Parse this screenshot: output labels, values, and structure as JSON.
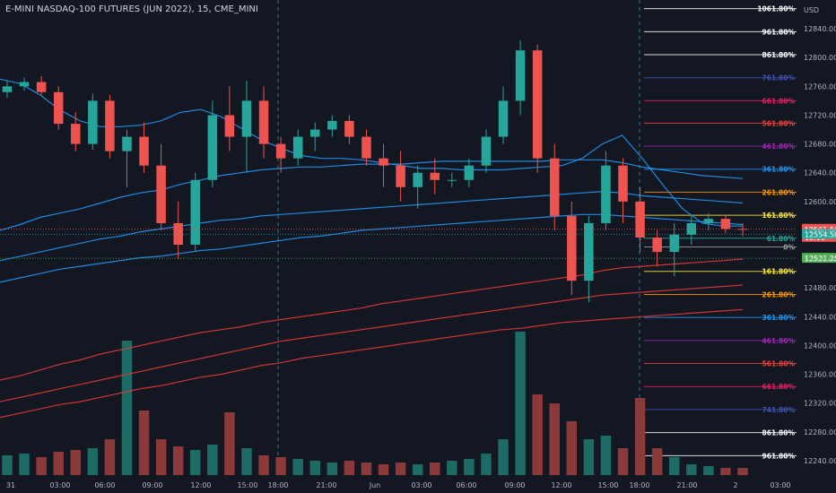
{
  "header": {
    "symbol": "E-MINI NASDAQ-100 FUTURES (JUN 2022), 15, CME_MINI"
  },
  "colors": {
    "background": "#131722",
    "up": "#26a69a",
    "down": "#ef5350",
    "up_volume": "#1e6b65",
    "down_volume": "#8c3a39",
    "grid_text": "#b2b5be",
    "ma_blue": "#2196f3",
    "ma_red": "#e53935"
  },
  "chart_data": {
    "type": "candlestick",
    "title": "E-MINI NASDAQ-100 FUTURES (JUN 2022), 15, CME_MINI",
    "currency_label": "USD",
    "ylim": [
      12220,
      12880
    ],
    "y_ticks": [
      12240,
      12280,
      12320,
      12360,
      12400,
      12440,
      12480,
      12520,
      12560,
      12600,
      12640,
      12680,
      12720,
      12760,
      12800,
      12840
    ],
    "y_tick_labels": [
      "12240.00",
      "12280.00",
      "12320.00",
      "12360.00",
      "12400.00",
      "12440.00",
      "12480.00",
      "12520.00",
      "12560.00",
      "12600.00",
      "12640.00",
      "12680.00",
      "12720.00",
      "12760.00",
      "12800.00",
      "12840.00"
    ],
    "x_tick_labels": [
      "31",
      "03:00",
      "06:00",
      "09:00",
      "12:00",
      "15:00",
      "18:00",
      "21:00",
      "Jun",
      "03:00",
      "06:00",
      "09:00",
      "12:00",
      "15:00",
      "18:00",
      "21:00",
      "2",
      "03:00"
    ],
    "session_breaks": [
      "18:00",
      "18:00"
    ],
    "price_markers": [
      {
        "label": "12561.50",
        "sub": "12:10",
        "price": 12561.5,
        "color": "#ef5350"
      },
      {
        "label": "12554.50",
        "price": 12554.5,
        "color": "#26a69a"
      },
      {
        "label": "12521.25",
        "price": 12521.25,
        "color": "#4caf50"
      }
    ],
    "fib_levels": [
      {
        "label": "1061.80%",
        "price": 12868,
        "color": "#ffffff"
      },
      {
        "label": "961.80%",
        "price": 12836,
        "color": "#ffffff"
      },
      {
        "label": "861.80%",
        "price": 12804,
        "color": "#ffffff"
      },
      {
        "label": "761.80%",
        "price": 12772,
        "color": "#3f51b5"
      },
      {
        "label": "661.80%",
        "price": 12740,
        "color": "#e91e63"
      },
      {
        "label": "561.80%",
        "price": 12709,
        "color": "#f44336"
      },
      {
        "label": "461.80%",
        "price": 12677,
        "color": "#9c27b0"
      },
      {
        "label": "361.80%",
        "price": 12645,
        "color": "#2196f3"
      },
      {
        "label": "261.80%",
        "price": 12613,
        "color": "#ff9800"
      },
      {
        "label": "161.80%",
        "price": 12581,
        "color": "#ffeb3b"
      },
      {
        "label": "61.80%",
        "price": 12549,
        "color": "#26a69a"
      },
      {
        "label": "0%",
        "price": 12537,
        "color": "#9e9e9e"
      },
      {
        "label": "161.80%",
        "price": 12503,
        "color": "#ffeb3b"
      },
      {
        "label": "261.80%",
        "price": 12471,
        "color": "#ff9800"
      },
      {
        "label": "361.80%",
        "price": 12439,
        "color": "#2196f3"
      },
      {
        "label": "461.80%",
        "price": 12407,
        "color": "#9c27b0"
      },
      {
        "label": "561.80%",
        "price": 12375,
        "color": "#f44336"
      },
      {
        "label": "661.80%",
        "price": 12343,
        "color": "#e91e63"
      },
      {
        "label": "741.80%",
        "price": 12311,
        "color": "#3f51b5"
      },
      {
        "label": "861.80%",
        "price": 12279,
        "color": "#ffffff"
      },
      {
        "label": "961.80%",
        "price": 12247,
        "color": "#ffffff"
      }
    ],
    "moving_averages": [
      {
        "color": "#2196f3",
        "values": [
          12770,
          12764,
          12748,
          12727,
          12712,
          12704,
          12704,
          12706,
          12712,
          12724,
          12728,
          12718,
          12702,
          12686,
          12674,
          12664,
          12660,
          12660,
          12658,
          12654,
          12650,
          12646,
          12646,
          12644,
          12644,
          12644,
          12646,
          12648,
          12650,
          12660,
          12680,
          12692,
          12660,
          12624,
          12590,
          12570,
          12566,
          12566
        ]
      },
      {
        "color": "#2196f3",
        "values": [
          12560,
          12568,
          12578,
          12584,
          12590,
          12598,
          12606,
          12612,
          12616,
          12624,
          12630,
          12636,
          12640,
          12644,
          12646,
          12648,
          12648,
          12650,
          12652,
          12652,
          12652,
          12654,
          12656,
          12656,
          12656,
          12656,
          12656,
          12656,
          12658,
          12658,
          12658,
          12654,
          12648,
          12644,
          12640,
          12636,
          12634,
          12632
        ]
      },
      {
        "color": "#2196f3",
        "values": [
          12518,
          12524,
          12530,
          12536,
          12542,
          12548,
          12552,
          12558,
          12562,
          12566,
          12570,
          12574,
          12576,
          12580,
          12582,
          12584,
          12586,
          12588,
          12590,
          12592,
          12594,
          12596,
          12598,
          12600,
          12602,
          12604,
          12606,
          12608,
          12610,
          12612,
          12614,
          12612,
          12608,
          12606,
          12604,
          12602,
          12600,
          12598
        ]
      },
      {
        "color": "#2196f3",
        "values": [
          12488,
          12494,
          12500,
          12506,
          12510,
          12514,
          12518,
          12522,
          12524,
          12528,
          12532,
          12534,
          12538,
          12542,
          12546,
          12550,
          12552,
          12556,
          12560,
          12562,
          12564,
          12566,
          12568,
          12570,
          12572,
          12574,
          12576,
          12578,
          12580,
          12582,
          12582,
          12580,
          12578,
          12576,
          12574,
          12572,
          12570,
          12568
        ]
      },
      {
        "color": "#e53935",
        "values": [
          12352,
          12358,
          12366,
          12374,
          12380,
          12388,
          12394,
          12400,
          12406,
          12412,
          12418,
          12422,
          12426,
          12432,
          12436,
          12440,
          12444,
          12448,
          12452,
          12458,
          12462,
          12466,
          12470,
          12474,
          12478,
          12482,
          12486,
          12490,
          12494,
          12498,
          12504,
          12508,
          12510,
          12512,
          12514,
          12516,
          12518,
          12520
        ]
      },
      {
        "color": "#e53935",
        "values": [
          12322,
          12328,
          12334,
          12340,
          12346,
          12352,
          12358,
          12364,
          12370,
          12376,
          12382,
          12388,
          12394,
          12400,
          12406,
          12410,
          12414,
          12418,
          12422,
          12426,
          12430,
          12434,
          12438,
          12442,
          12446,
          12450,
          12454,
          12458,
          12462,
          12466,
          12470,
          12472,
          12474,
          12476,
          12478,
          12480,
          12482,
          12484
        ]
      },
      {
        "color": "#e53935",
        "values": [
          12300,
          12306,
          12312,
          12318,
          12322,
          12328,
          12334,
          12340,
          12344,
          12350,
          12356,
          12360,
          12366,
          12372,
          12376,
          12382,
          12386,
          12390,
          12394,
          12398,
          12402,
          12406,
          12410,
          12414,
          12418,
          12422,
          12424,
          12428,
          12432,
          12434,
          12436,
          12438,
          12440,
          12442,
          12444,
          12446,
          12448,
          12450
        ]
      }
    ],
    "candles": [
      [
        12752,
        12768,
        12744,
        12760
      ],
      [
        12760,
        12772,
        12754,
        12766
      ],
      [
        12766,
        12774,
        12748,
        12752
      ],
      [
        12752,
        12760,
        12700,
        12708
      ],
      [
        12708,
        12724,
        12670,
        12680
      ],
      [
        12680,
        12750,
        12672,
        12740
      ],
      [
        12740,
        12748,
        12660,
        12670
      ],
      [
        12670,
        12700,
        12620,
        12690
      ],
      [
        12690,
        12710,
        12640,
        12650
      ],
      [
        12650,
        12680,
        12560,
        12570
      ],
      [
        12570,
        12600,
        12520,
        12540
      ],
      [
        12540,
        12640,
        12530,
        12630
      ],
      [
        12630,
        12740,
        12620,
        12720
      ],
      [
        12720,
        12760,
        12670,
        12690
      ],
      [
        12690,
        12768,
        12640,
        12740
      ],
      [
        12740,
        12760,
        12660,
        12680
      ],
      [
        12680,
        12690,
        12640,
        12660
      ],
      [
        12660,
        12700,
        12650,
        12690
      ],
      [
        12690,
        12710,
        12670,
        12700
      ],
      [
        12700,
        12720,
        12690,
        12712
      ],
      [
        12712,
        12720,
        12680,
        12690
      ],
      [
        12690,
        12700,
        12650,
        12660
      ],
      [
        12660,
        12680,
        12620,
        12650
      ],
      [
        12650,
        12670,
        12600,
        12620
      ],
      [
        12620,
        12650,
        12590,
        12640
      ],
      [
        12640,
        12660,
        12610,
        12630
      ],
      [
        12630,
        12640,
        12620,
        12630
      ],
      [
        12630,
        12660,
        12620,
        12650
      ],
      [
        12650,
        12700,
        12640,
        12690
      ],
      [
        12690,
        12760,
        12680,
        12740
      ],
      [
        12740,
        12824,
        12720,
        12810
      ],
      [
        12810,
        12818,
        12640,
        12660
      ],
      [
        12660,
        12680,
        12560,
        12580
      ],
      [
        12580,
        12600,
        12470,
        12490
      ],
      [
        12490,
        12580,
        12460,
        12570
      ],
      [
        12570,
        12670,
        12560,
        12650
      ],
      [
        12650,
        12660,
        12570,
        12600
      ],
      [
        12600,
        12620,
        12530,
        12550
      ],
      [
        12550,
        12560,
        12510,
        12530
      ],
      [
        12530,
        12570,
        12496,
        12554
      ],
      [
        12554,
        12580,
        12540,
        12570
      ],
      [
        12570,
        12584,
        12560,
        12576
      ],
      [
        12576,
        12582,
        12556,
        12562
      ],
      [
        12562,
        12570,
        12552,
        12561.5
      ]
    ],
    "volume": [
      22,
      24,
      20,
      26,
      28,
      30,
      40,
      150,
      72,
      40,
      32,
      28,
      34,
      70,
      30,
      22,
      20,
      18,
      16,
      14,
      16,
      14,
      12,
      14,
      12,
      14,
      16,
      18,
      24,
      40,
      160,
      90,
      80,
      60,
      40,
      44,
      30,
      86,
      30,
      20,
      12,
      10,
      8,
      8
    ]
  }
}
